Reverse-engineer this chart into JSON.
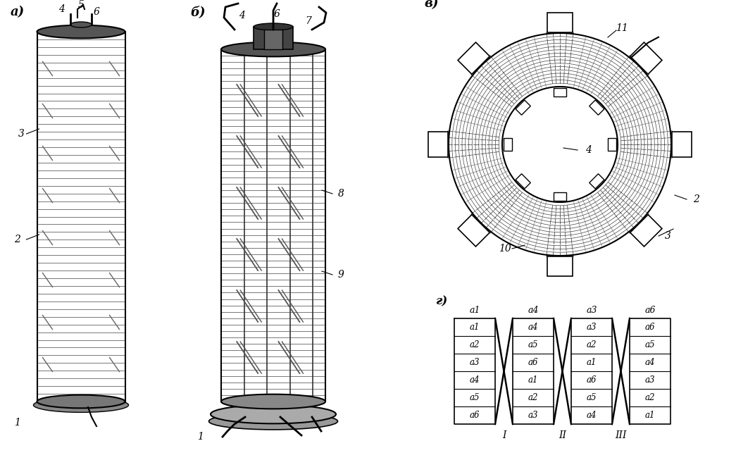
{
  "bg_color": "#ffffff",
  "line_color": "#000000",
  "fig_width": 10.45,
  "fig_height": 6.53,
  "label_a": "а)",
  "label_b": "б)",
  "label_v": "в)",
  "label_g": "г)",
  "col1": [
    "a1",
    "a2",
    "a3",
    "a4",
    "a5",
    "a6"
  ],
  "col2": [
    "a4",
    "a5",
    "a6",
    "a1",
    "a2",
    "a3"
  ],
  "col3": [
    "a3",
    "a2",
    "a1",
    "a6",
    "a5",
    "a4"
  ],
  "col4": [
    "a6",
    "a5",
    "a4",
    "a3",
    "a2",
    "a1"
  ],
  "col_tops": [
    "a1",
    "a4",
    "a3",
    "a6"
  ],
  "roman": [
    "I",
    "II",
    "III"
  ]
}
